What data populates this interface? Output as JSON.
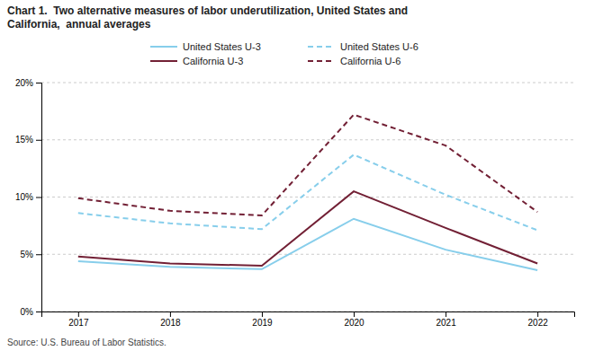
{
  "chart_data": {
    "type": "line",
    "title": "Chart 1.  Two alternative measures of labor underutilization, United States and\nCalifornia,  annual averages",
    "annotations": [
      "Source: U.S. Bureau of Labor Statistics."
    ],
    "x": [
      2017,
      2018,
      2019,
      2020,
      2021,
      2022
    ],
    "xlim": [
      2016.6,
      2022.4
    ],
    "xticks": [
      2017,
      2018,
      2019,
      2020,
      2021,
      2022
    ],
    "ylim": [
      0,
      20
    ],
    "yticks": [
      {
        "value": 0,
        "label": "0%"
      },
      {
        "value": 5,
        "label": "5%"
      },
      {
        "value": 10,
        "label": "10%"
      },
      {
        "value": 15,
        "label": "15%"
      },
      {
        "value": 20,
        "label": "20%"
      }
    ],
    "grid": true,
    "legend": "top",
    "series": [
      {
        "name": "United States U-3",
        "color": "#87CEEB",
        "line_style": "solid",
        "values": [
          4.4,
          3.9,
          3.7,
          8.1,
          5.4,
          3.6
        ]
      },
      {
        "name": "United States U-6",
        "color": "#87CEEB",
        "line_style": "dashed",
        "values": [
          8.6,
          7.7,
          7.2,
          13.7,
          10.2,
          7.1
        ]
      },
      {
        "name": "California U-3",
        "color": "#722035",
        "line_style": "solid",
        "values": [
          4.8,
          4.2,
          4.0,
          10.5,
          7.3,
          4.2
        ]
      },
      {
        "name": "California U-6",
        "color": "#722035",
        "line_style": "dashed",
        "values": [
          9.9,
          8.8,
          8.4,
          17.2,
          14.5,
          8.7
        ]
      }
    ]
  }
}
